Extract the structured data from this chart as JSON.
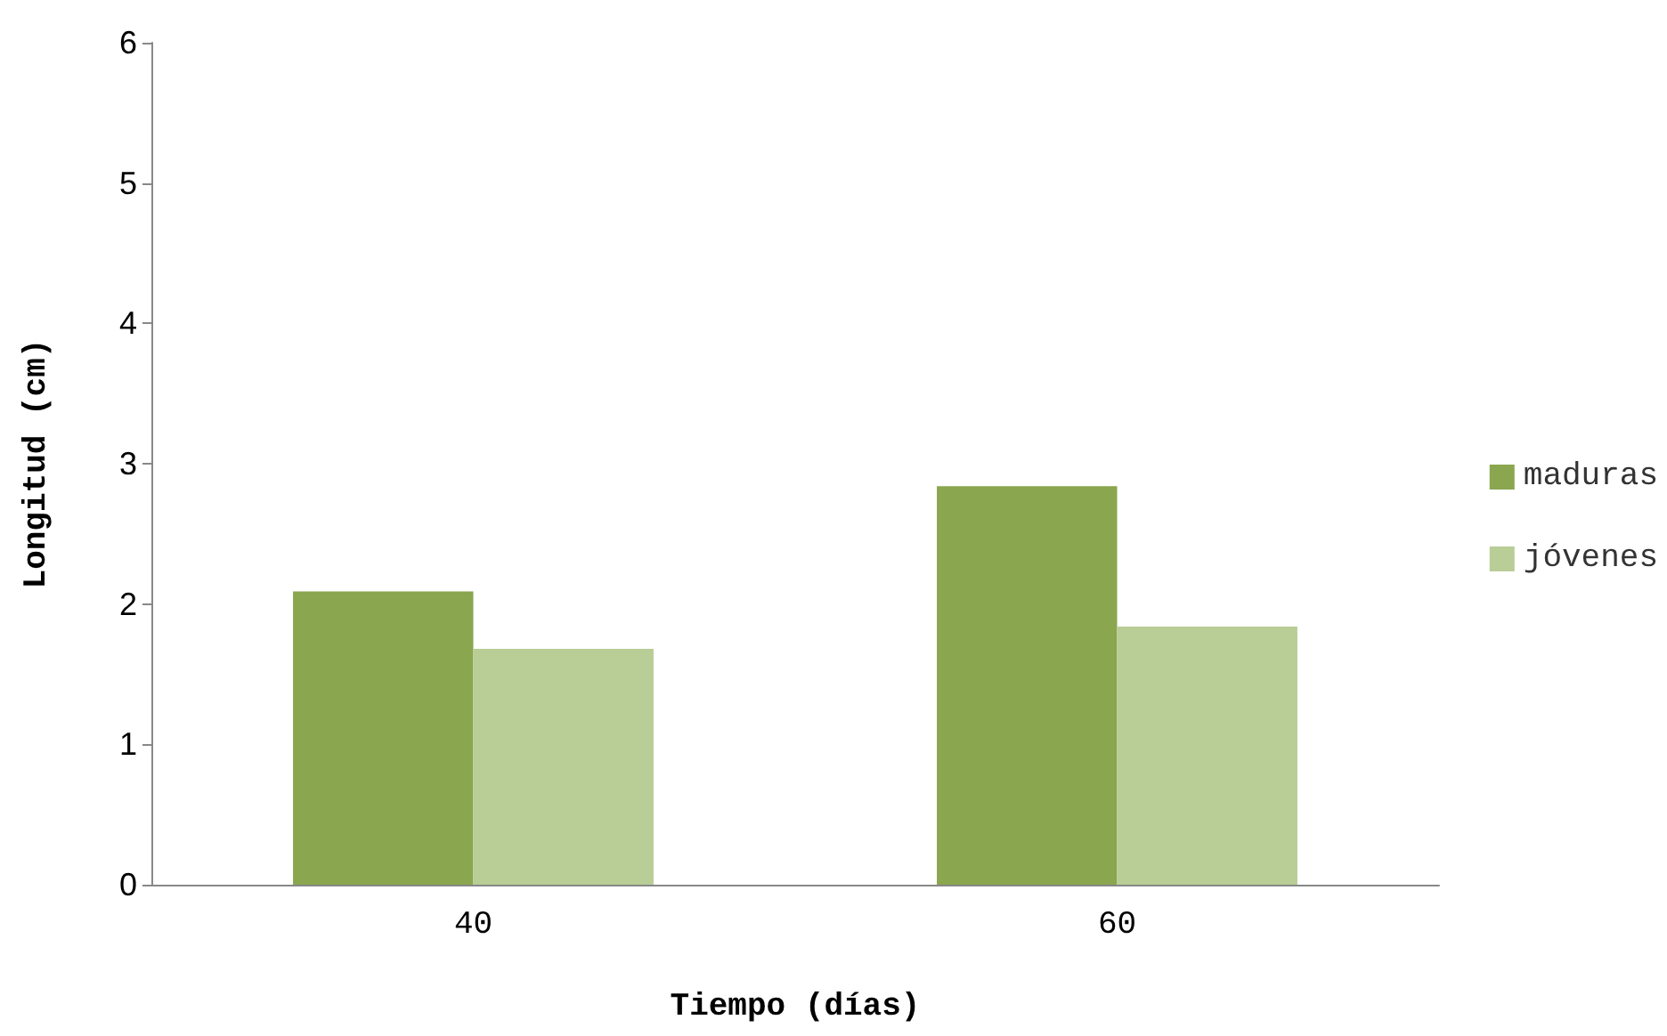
{
  "chart_data": {
    "type": "bar",
    "xlabel": "Tiempo (días)",
    "ylabel": "Longitud (cm)",
    "categories": [
      "40",
      "60"
    ],
    "series": [
      {
        "name": "maduras",
        "color": "#8aa64e",
        "values": [
          2.09,
          2.84
        ]
      },
      {
        "name": "jóvenes",
        "color": "#b9cd96",
        "values": [
          1.68,
          1.84
        ]
      }
    ],
    "ylim": [
      0,
      6
    ],
    "yticks": [
      0,
      1,
      2,
      3,
      4,
      5,
      6
    ],
    "grid": false,
    "legend": "right"
  }
}
